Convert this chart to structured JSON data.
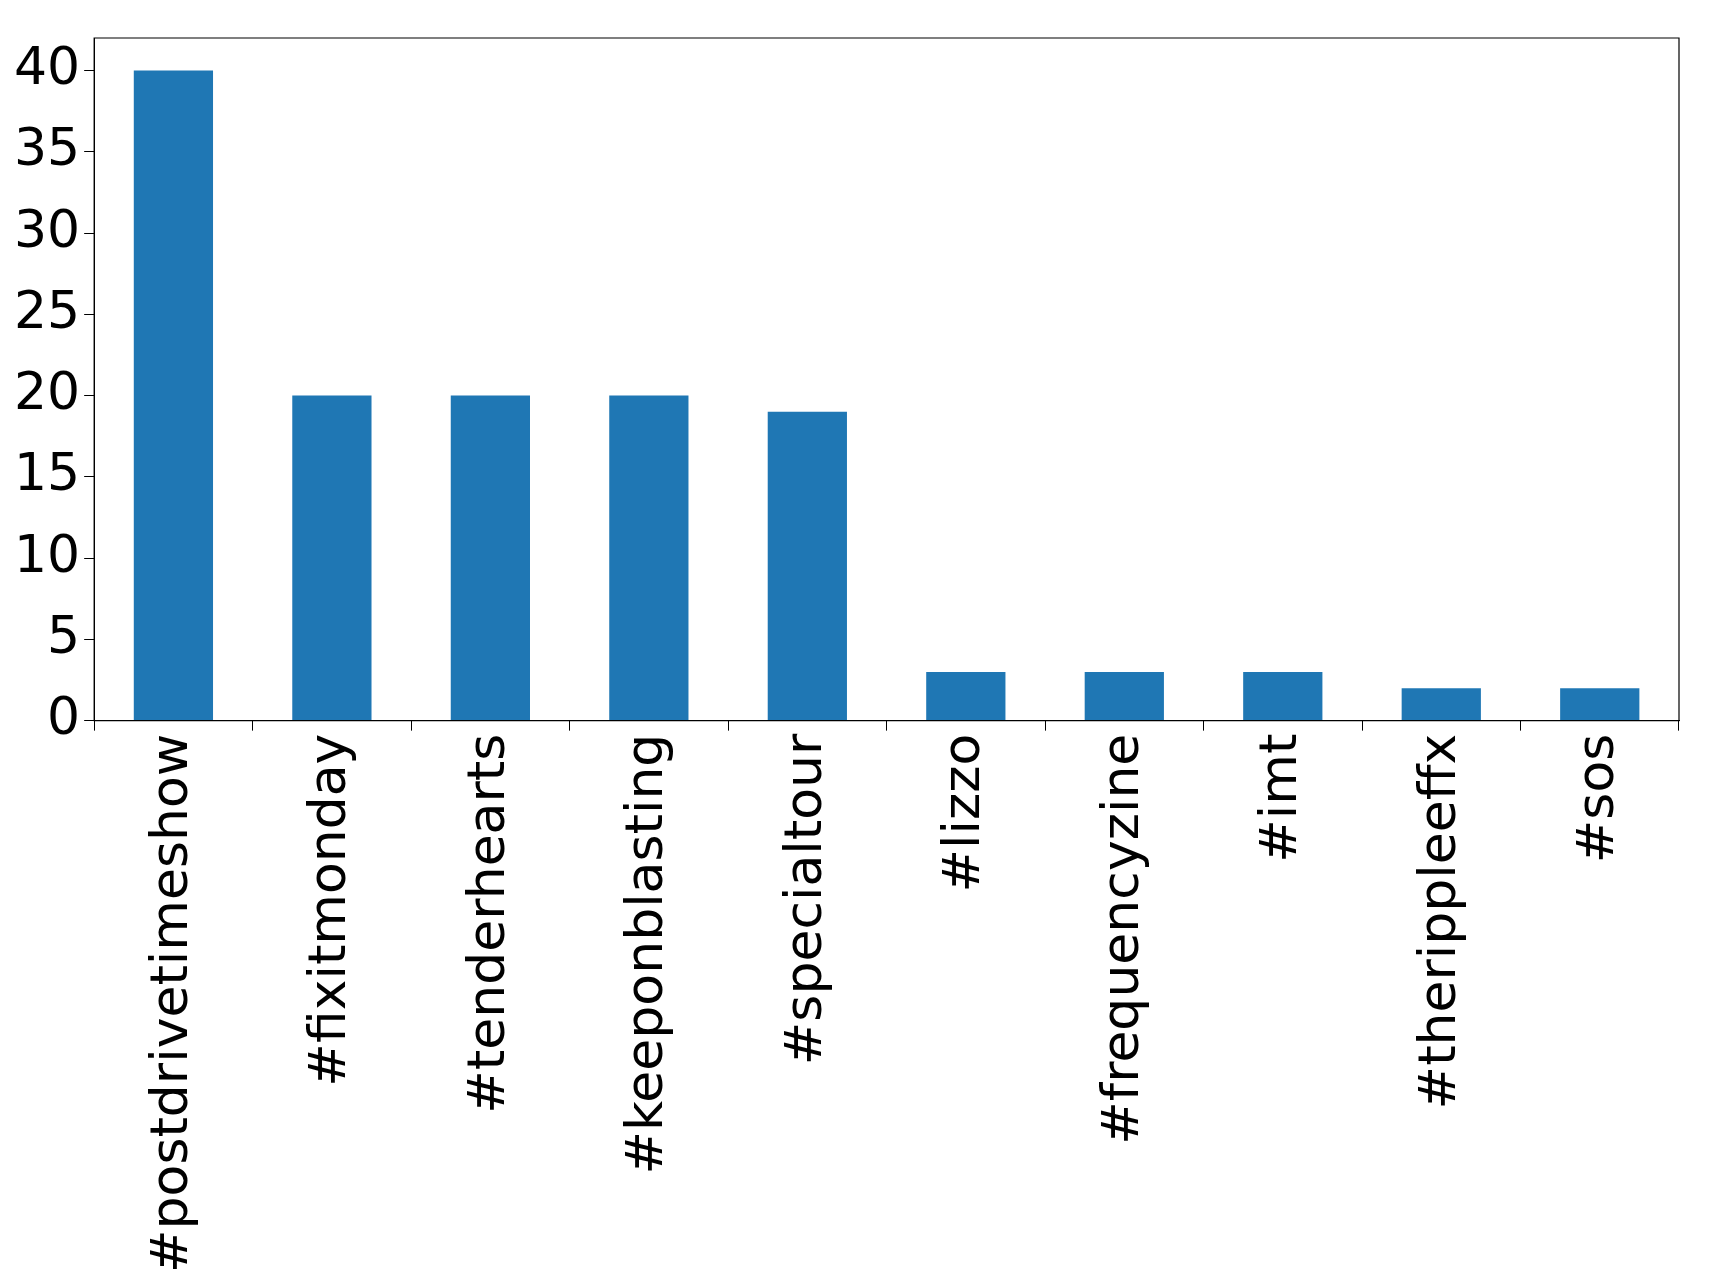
{
  "chart_data": {
    "type": "bar",
    "categories": [
      "#postdrivetimeshow",
      "#fixitmonday",
      "#tenderhearts",
      "#keeponblasting",
      "#specialtour",
      "#lizzo",
      "#frequencyzine",
      "#imt",
      "#therippleeffx",
      "#sos"
    ],
    "values": [
      40,
      20,
      20,
      20,
      19,
      3,
      3,
      3,
      2,
      2
    ],
    "color": "#1f77b4",
    "ylim": [
      0,
      42
    ],
    "yticks": [
      0,
      5,
      10,
      15,
      20,
      25,
      30,
      35,
      40
    ],
    "grid": false,
    "legend": false
  }
}
